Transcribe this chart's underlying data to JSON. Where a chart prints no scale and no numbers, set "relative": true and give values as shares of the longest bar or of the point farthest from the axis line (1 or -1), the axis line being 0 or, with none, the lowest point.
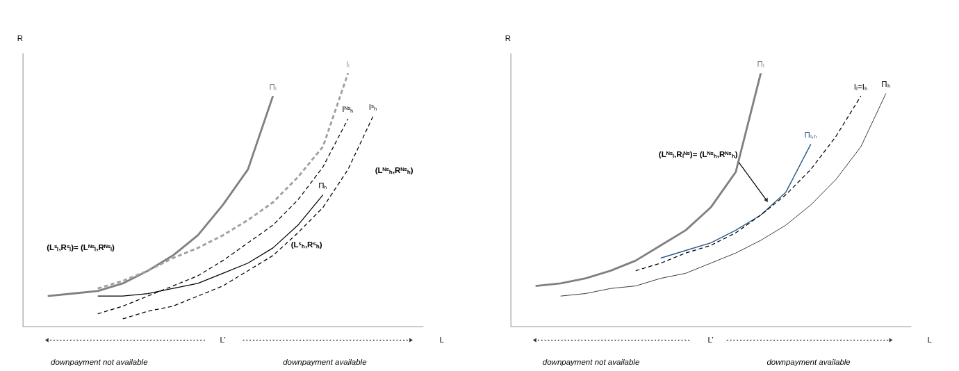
{
  "chart_data": [
    {
      "type": "line",
      "xlabel": "L",
      "ylabel": "R",
      "relative": true,
      "tick_labels": false,
      "grid": false,
      "legend": false,
      "categories": [
        null,
        null,
        null,
        null,
        null,
        null,
        null,
        null,
        null,
        null,
        null,
        null,
        null,
        null,
        null
      ],
      "series": [
        {
          "name": "Πₗ",
          "color": "#808080",
          "line_style": "solid",
          "values": [
            0.12,
            0.13,
            0.14,
            0.17,
            0.22,
            0.28,
            0.36,
            0.48,
            0.62,
            0.91,
            null,
            null,
            null,
            null,
            null
          ]
        },
        {
          "name": "Iₗ",
          "color": "#a0a0a0",
          "line_style": "dashed",
          "values": [
            null,
            null,
            0.15,
            0.18,
            0.22,
            0.27,
            0.31,
            0.36,
            0.42,
            0.49,
            0.59,
            0.71,
            1.0,
            null,
            null
          ]
        },
        {
          "name": "Iᴺˢₕ",
          "color": "#000000",
          "line_style": "dashed",
          "values": [
            null,
            null,
            0.05,
            0.08,
            0.12,
            0.16,
            0.2,
            0.26,
            0.33,
            0.4,
            0.5,
            0.63,
            0.82,
            null,
            null
          ]
        },
        {
          "name": "Iˢₕ",
          "color": "#000000",
          "line_style": "dashed",
          "values": [
            null,
            null,
            null,
            0.03,
            0.06,
            0.08,
            0.12,
            0.16,
            0.22,
            0.28,
            0.37,
            0.47,
            0.62,
            0.83,
            null
          ]
        },
        {
          "name": "Πₕ",
          "color": "#000000",
          "line_style": "solid",
          "values": [
            null,
            null,
            0.12,
            0.12,
            0.13,
            0.15,
            0.17,
            0.21,
            0.25,
            0.31,
            0.4,
            0.52,
            null,
            null,
            null
          ]
        }
      ],
      "annotations": [
        "(Lˢₗ,Rˢₗ)= (Lᴺˢₗ,Rᴺˢₗ)",
        "(Lˢₕ,Rˢₕ)",
        "(Lᴺˢₕ,Rᴺˢₕ)",
        "L’",
        "downpayment not available",
        "downpayment available"
      ]
    },
    {
      "type": "line",
      "xlabel": "L",
      "ylabel": "R",
      "relative": true,
      "tick_labels": false,
      "grid": false,
      "legend": false,
      "categories": [
        null,
        null,
        null,
        null,
        null,
        null,
        null,
        null,
        null,
        null,
        null,
        null,
        null,
        null,
        null
      ],
      "series": [
        {
          "name": "Πₗ",
          "color": "#808080",
          "line_style": "solid",
          "values": [
            0.16,
            0.17,
            0.19,
            0.22,
            0.26,
            0.32,
            0.38,
            0.47,
            0.61,
            1.0,
            null,
            null,
            null,
            null,
            null
          ]
        },
        {
          "name": "Πₗ,ₕ",
          "color": "#2e5a87",
          "line_style": "solid",
          "values": [
            null,
            null,
            null,
            null,
            null,
            0.27,
            0.3,
            0.33,
            0.38,
            0.44,
            0.53,
            0.72,
            null,
            null,
            null
          ]
        },
        {
          "name": "Iₗ=Iₕ",
          "color": "#000000",
          "line_style": "dashed",
          "values": [
            null,
            null,
            null,
            null,
            0.22,
            0.25,
            0.29,
            0.32,
            0.37,
            0.44,
            0.52,
            0.62,
            0.75,
            0.91,
            null
          ]
        },
        {
          "name": "Πₕ",
          "color": "#000000",
          "line_style": "solid",
          "values": [
            null,
            0.12,
            0.13,
            0.15,
            0.16,
            0.19,
            0.21,
            0.25,
            0.29,
            0.34,
            0.4,
            0.48,
            0.58,
            0.71,
            0.92
          ]
        }
      ],
      "annotations": [
        "(Lᴺˢₗ,Rₗᴺˢ)= (Lᴺˢₕ,Rᴺˢₕ)",
        "L’",
        "downpayment not available",
        "downpayment available"
      ]
    }
  ]
}
